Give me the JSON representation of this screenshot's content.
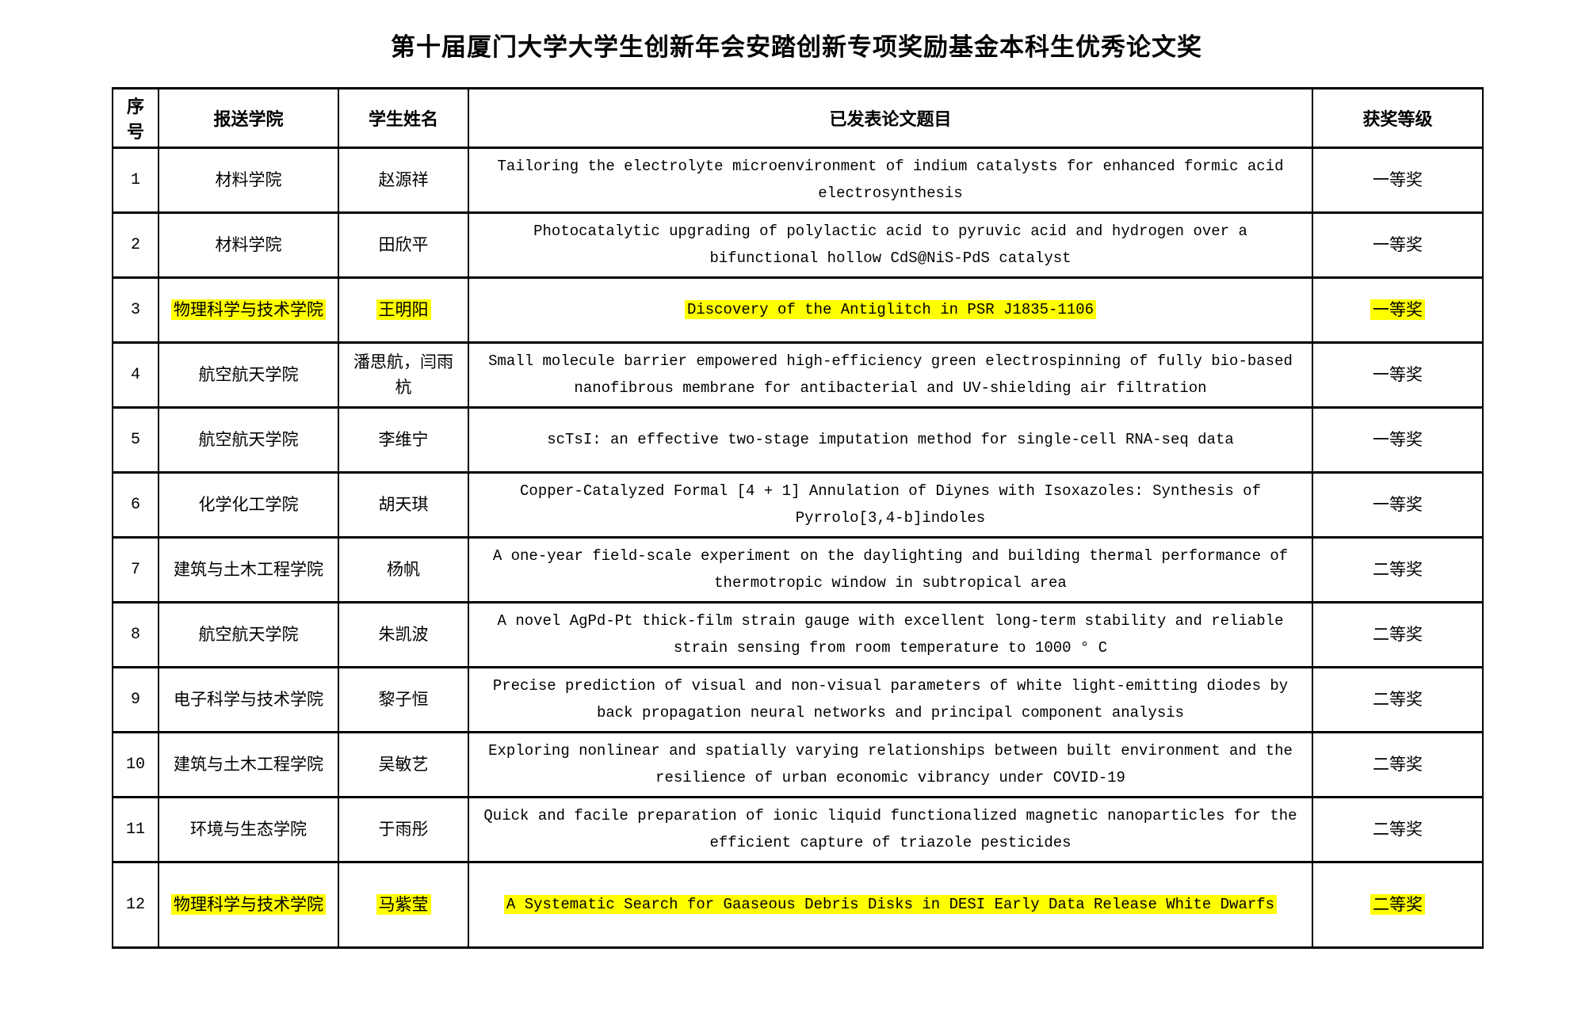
{
  "page": {
    "title": "第十届厦门大学大学生创新年会安踏创新专项奖励基金本科生优秀论文奖"
  },
  "colors": {
    "highlight": "#ffff00",
    "border": "#000000",
    "text": "#000000",
    "background": "#ffffff"
  },
  "table": {
    "headers": [
      "序号",
      "报送学院",
      "学生姓名",
      "已发表论文题目",
      "获奖等级"
    ],
    "rows": [
      {
        "no": "1",
        "college": "材料学院",
        "student": "赵源祥",
        "paper": "Tailoring the electrolyte microenvironment of indium catalysts for enhanced formic acid electrosynthesis",
        "award": "一等奖",
        "highlighted": false
      },
      {
        "no": "2",
        "college": "材料学院",
        "student": "田欣平",
        "paper": "Photocatalytic upgrading of polylactic acid to pyruvic acid and hydrogen over a bifunctional hollow CdS@NiS-PdS catalyst",
        "award": "一等奖",
        "highlighted": false
      },
      {
        "no": "3",
        "college": "物理科学与技术学院",
        "student": "王明阳",
        "paper": "Discovery of the Antiglitch in PSR J1835-1106",
        "award": "一等奖",
        "highlighted": true
      },
      {
        "no": "4",
        "college": "航空航天学院",
        "student": "潘思航，闫雨杭",
        "paper": "Small molecule barrier empowered high-efficiency green electrospinning of fully bio-based nanofibrous membrane for antibacterial and UV-shielding air filtration",
        "award": "一等奖",
        "highlighted": false
      },
      {
        "no": "5",
        "college": "航空航天学院",
        "student": "李维宁",
        "paper": "scTsI: an effective two-stage imputation method for single-cell RNA-seq data",
        "award": "一等奖",
        "highlighted": false
      },
      {
        "no": "6",
        "college": "化学化工学院",
        "student": "胡天琪",
        "paper": "Copper-Catalyzed Formal [4 + 1] Annulation of Diynes with Isoxazoles: Synthesis of Pyrrolo[3,4-b]indoles",
        "award": "一等奖",
        "highlighted": false
      },
      {
        "no": "7",
        "college": "建筑与土木工程学院",
        "student": "杨帆",
        "paper": "A one-year field-scale experiment on the daylighting and building thermal performance of thermotropic window in subtropical area",
        "award": "二等奖",
        "highlighted": false
      },
      {
        "no": "8",
        "college": "航空航天学院",
        "student": "朱凯波",
        "paper": "A novel AgPd-Pt thick-film strain gauge with excellent long-term stability and reliable strain sensing from room temperature to 1000 ° C",
        "award": "二等奖",
        "highlighted": false
      },
      {
        "no": "9",
        "college": "电子科学与技术学院",
        "student": "黎子恒",
        "paper": "Precise prediction of visual and non-visual parameters of white light-emitting diodes by back propagation neural networks and principal component analysis",
        "award": "二等奖",
        "highlighted": false
      },
      {
        "no": "10",
        "college": "建筑与土木工程学院",
        "student": "吴敏艺",
        "paper": "Exploring nonlinear and spatially varying relationships between built environment and the resilience of urban economic vibrancy under COVID-19",
        "award": "二等奖",
        "highlighted": false
      },
      {
        "no": "11",
        "college": "环境与生态学院",
        "student": "于雨彤",
        "paper": "Quick and facile preparation of ionic liquid functionalized magnetic nanoparticles for the efficient capture of triazole pesticides",
        "award": "二等奖",
        "highlighted": false
      },
      {
        "no": "12",
        "college": "物理科学与技术学院",
        "student": "马紫莹",
        "paper": "A Systematic Search for Gaaseous Debris Disks in DESI Early Data Release White Dwarfs",
        "award": "二等奖",
        "highlighted": true
      }
    ]
  }
}
